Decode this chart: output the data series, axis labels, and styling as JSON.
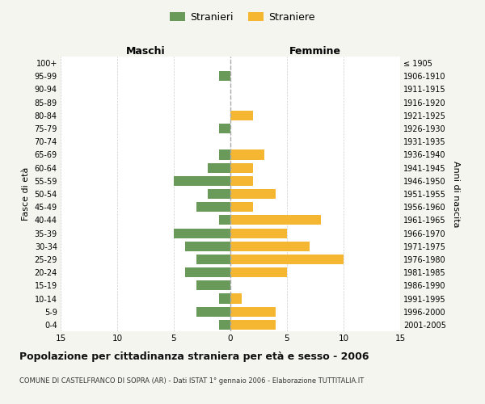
{
  "age_groups": [
    "100+",
    "95-99",
    "90-94",
    "85-89",
    "80-84",
    "75-79",
    "70-74",
    "65-69",
    "60-64",
    "55-59",
    "50-54",
    "45-49",
    "40-44",
    "35-39",
    "30-34",
    "25-29",
    "20-24",
    "15-19",
    "10-14",
    "5-9",
    "0-4"
  ],
  "birth_years": [
    "≤ 1905",
    "1906-1910",
    "1911-1915",
    "1916-1920",
    "1921-1925",
    "1926-1930",
    "1931-1935",
    "1936-1940",
    "1941-1945",
    "1946-1950",
    "1951-1955",
    "1956-1960",
    "1961-1965",
    "1966-1970",
    "1971-1975",
    "1976-1980",
    "1981-1985",
    "1986-1990",
    "1991-1995",
    "1996-2000",
    "2001-2005"
  ],
  "maschi": [
    0,
    1,
    0,
    0,
    0,
    1,
    0,
    1,
    2,
    5,
    2,
    3,
    1,
    5,
    4,
    3,
    4,
    3,
    1,
    3,
    1
  ],
  "femmine": [
    0,
    0,
    0,
    0,
    2,
    0,
    0,
    3,
    2,
    2,
    4,
    2,
    8,
    5,
    7,
    10,
    5,
    0,
    1,
    4,
    4
  ],
  "male_color": "#6a9a5a",
  "female_color": "#f5b731",
  "title": "Popolazione per cittadinanza straniera per età e sesso - 2006",
  "subtitle": "COMUNE DI CASTELFRANCO DI SOPRA (AR) - Dati ISTAT 1° gennaio 2006 - Elaborazione TUTTITALIA.IT",
  "ylabel_left": "Fasce di età",
  "ylabel_right": "Anni di nascita",
  "xlabel_maschi": "Maschi",
  "xlabel_femmine": "Femmine",
  "legend_male": "Stranieri",
  "legend_female": "Straniere",
  "xlim": 15,
  "background_color": "#f5f5f0",
  "plot_bg_color": "#ffffff",
  "grid_color": "#cccccc"
}
